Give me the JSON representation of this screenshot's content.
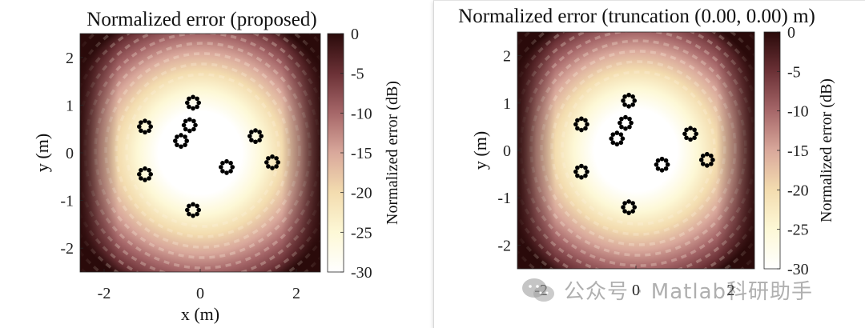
{
  "chart_data": [
    {
      "type": "heatmap",
      "title": "Normalized error (proposed)",
      "xlabel": "x (m)",
      "ylabel": "y (m)",
      "xlim": [
        -2.5,
        2.5
      ],
      "ylim": [
        -2.5,
        2.5
      ],
      "xticks": [
        "-2",
        "0",
        "2"
      ],
      "yticks": [
        "2",
        "1",
        "0",
        "-1",
        "-2"
      ],
      "colorbar": {
        "label": "Normalized error (dB)",
        "range": [
          -30,
          0
        ],
        "ticks": [
          "0",
          "-5",
          "-10",
          "-15",
          "-20",
          "-25",
          "-30"
        ]
      },
      "colormap": [
        "#ffffff",
        "#fdf8d6",
        "#f3dcaf",
        "#d9a89b",
        "#a66769",
        "#6b3136",
        "#2a0a0a"
      ],
      "scatter_groups": [
        {
          "center": [
            -0.15,
            1.05
          ],
          "radius": 0.12,
          "count": 8
        },
        {
          "center": [
            -0.22,
            0.58
          ],
          "radius": 0.12,
          "count": 8
        },
        {
          "center": [
            -0.4,
            0.25
          ],
          "radius": 0.12,
          "count": 8
        },
        {
          "center": [
            -1.15,
            0.55
          ],
          "radius": 0.12,
          "count": 8
        },
        {
          "center": [
            -1.15,
            -0.45
          ],
          "radius": 0.12,
          "count": 8
        },
        {
          "center": [
            0.55,
            -0.3
          ],
          "radius": 0.12,
          "count": 8
        },
        {
          "center": [
            1.15,
            0.35
          ],
          "radius": 0.12,
          "count": 8
        },
        {
          "center": [
            1.5,
            -0.2
          ],
          "radius": 0.12,
          "count": 8
        },
        {
          "center": [
            -0.15,
            -1.2
          ],
          "radius": 0.12,
          "count": 8
        }
      ]
    },
    {
      "type": "heatmap",
      "title": "Normalized error (truncation (0.00, 0.00) m)",
      "xlabel": "",
      "ylabel": "y (m)",
      "xlim": [
        -2.5,
        2.5
      ],
      "ylim": [
        -2.5,
        2.5
      ],
      "xticks": [
        "-2",
        "0",
        "2"
      ],
      "yticks": [
        "2",
        "1",
        "0",
        "-1",
        "-2"
      ],
      "colorbar": {
        "label": "Normalized error (dB)",
        "range": [
          -30,
          0
        ],
        "ticks": [
          "0",
          "-5",
          "-10",
          "-15",
          "-20",
          "-25",
          "-30"
        ]
      },
      "colormap": [
        "#ffffff",
        "#fdf8d6",
        "#f3dcaf",
        "#d9a89b",
        "#a66769",
        "#6b3136",
        "#2a0a0a"
      ],
      "scatter_groups": [
        {
          "center": [
            -0.15,
            1.05
          ],
          "radius": 0.12,
          "count": 8
        },
        {
          "center": [
            -0.22,
            0.58
          ],
          "radius": 0.12,
          "count": 8
        },
        {
          "center": [
            -0.4,
            0.25
          ],
          "radius": 0.12,
          "count": 8
        },
        {
          "center": [
            -1.15,
            0.55
          ],
          "radius": 0.12,
          "count": 8
        },
        {
          "center": [
            -1.15,
            -0.45
          ],
          "radius": 0.12,
          "count": 8
        },
        {
          "center": [
            0.55,
            -0.3
          ],
          "radius": 0.12,
          "count": 8
        },
        {
          "center": [
            1.15,
            0.35
          ],
          "radius": 0.12,
          "count": 8
        },
        {
          "center": [
            1.5,
            -0.2
          ],
          "radius": 0.12,
          "count": 8
        },
        {
          "center": [
            -0.15,
            -1.2
          ],
          "radius": 0.12,
          "count": 8
        }
      ]
    }
  ],
  "watermark": {
    "text": "公众号 · Matlab科研助手",
    "icon": "wechat-icon"
  }
}
